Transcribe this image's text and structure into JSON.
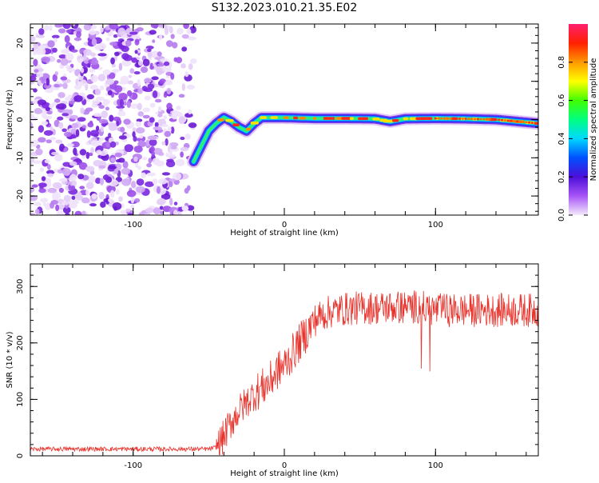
{
  "title": "S132.2023.010.21.35.E02",
  "chart_data": [
    {
      "type": "heatmap",
      "xlabel": "Height of straight line (km)",
      "ylabel": "Frequency (Hz)",
      "xlim": [
        -168,
        168
      ],
      "ylim": [
        -25,
        25
      ],
      "x_ticks": [
        -100,
        0,
        100
      ],
      "x_tick_labels": [
        "-100",
        "0",
        "100"
      ],
      "y_ticks": [
        -20,
        -10,
        0,
        10,
        20
      ],
      "y_tick_labels": [
        "-20",
        "-10",
        "0",
        "10",
        "20"
      ],
      "grid": false,
      "description_points": {
        "noise_region_x": [
          -168,
          -60
        ],
        "signal_trace": {
          "x": [
            -60,
            -55,
            -50,
            -45,
            -40,
            -35,
            -30,
            -25,
            -20,
            -15,
            -10,
            0,
            20,
            40,
            60,
            70,
            80,
            100,
            120,
            140,
            168
          ],
          "y": [
            -11,
            -7,
            -3,
            -1,
            0.5,
            -0.5,
            -2,
            -3,
            -1,
            0.5,
            0.5,
            0.5,
            0.3,
            0.3,
            0.2,
            -0.5,
            0.2,
            0.3,
            0.2,
            0,
            -1
          ]
        }
      },
      "colorbar": {
        "label": "Normalized spectral amplitude",
        "range": [
          0,
          1
        ],
        "ticks": [
          0,
          0.2,
          0.4,
          0.6,
          0.8
        ],
        "tick_labels": [
          "0.0",
          "0.2",
          "0.4",
          "0.6",
          "0.8"
        ],
        "colors": [
          "#f4eafb",
          "#a855f7",
          "#4b0fd8",
          "#0050ff",
          "#00d8ff",
          "#00ff80",
          "#40ff00",
          "#ffff00",
          "#ff9900",
          "#ff2000",
          "#ff2070"
        ]
      }
    },
    {
      "type": "line",
      "xlabel": "Height of straight line (km)",
      "ylabel": "SNR (10 * v/v)",
      "xlim": [
        -168,
        168
      ],
      "ylim": [
        0,
        340
      ],
      "x_ticks": [
        -100,
        0,
        100
      ],
      "x_tick_labels": [
        "-100",
        "0",
        "100"
      ],
      "y_ticks": [
        0,
        100,
        200,
        300
      ],
      "y_tick_labels": [
        "0",
        "100",
        "200",
        "300"
      ],
      "grid": false,
      "line_color": "#e8332c",
      "series": [
        {
          "x": [
            -168,
            -150,
            -130,
            -110,
            -90,
            -70,
            -50,
            -45,
            -42,
            -38,
            -35,
            -30,
            -25,
            -20,
            -15,
            -10,
            -5,
            0,
            5,
            10,
            15,
            20,
            25,
            30,
            40,
            50,
            60,
            70,
            80,
            90,
            95,
            100,
            110,
            120,
            130,
            140,
            150,
            160,
            168
          ],
          "y": [
            12,
            12,
            12,
            12,
            12,
            12,
            12,
            15,
            25,
            45,
            60,
            80,
            95,
            110,
            120,
            130,
            150,
            160,
            180,
            200,
            220,
            240,
            250,
            255,
            260,
            262,
            262,
            263,
            263,
            265,
            260,
            258,
            258,
            258,
            258,
            258,
            258,
            258,
            258
          ]
        }
      ]
    }
  ]
}
